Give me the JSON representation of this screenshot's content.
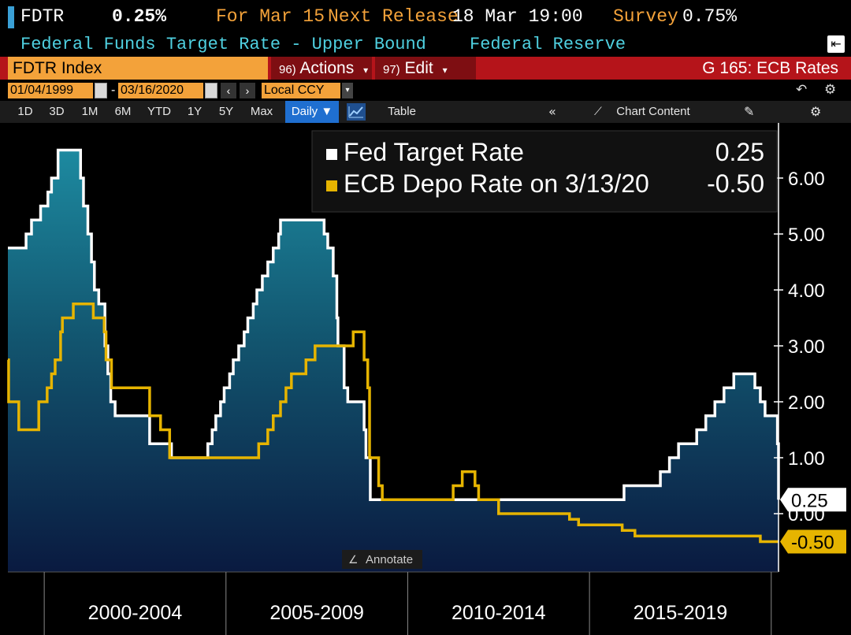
{
  "header": {
    "ticker_short": "FDTR",
    "last_value": "0.25%",
    "for_label": "For Mar 15",
    "next_release_label": "Next Release",
    "next_release_value": "18 Mar 19:00",
    "survey_label": "Survey",
    "survey_value": "0.75%",
    "description": "Federal Funds Target Rate - Upper Bound",
    "source": "Federal Reserve",
    "export_icon": "export-icon"
  },
  "toolbar": {
    "ticker": "FDTR Index",
    "actions_num": "96)",
    "actions_label": "Actions",
    "edit_num": "97)",
    "edit_label": "Edit",
    "page_title": "G 165: ECB Rates"
  },
  "date_range": {
    "start": "01/04/1999",
    "end": "03/16/2020",
    "separator": "-",
    "currency": "Local CCY"
  },
  "periods": [
    "1D",
    "3D",
    "1M",
    "6M",
    "YTD",
    "1Y",
    "5Y",
    "Max"
  ],
  "frequency": "Daily ▼",
  "table_label": "Table",
  "collapse_icon": "«",
  "chart_content_label": "Chart Content",
  "annotate_label": "Annotate",
  "colors": {
    "background": "#000000",
    "orange": "#f3a23a",
    "cyan_text": "#4fd0e0",
    "toolbar_red": "#b5141a",
    "fed_line": "#ffffff",
    "ecb_line": "#e6b400",
    "area_top": "#1d8aa0",
    "area_bottom": "#0a1a40"
  },
  "chart_data": {
    "type": "line",
    "ylim": [
      -0.9,
      7.0
    ],
    "y_ticks": [
      "6.00",
      "5.00",
      "4.00",
      "3.00",
      "2.00",
      "1.00",
      "0.00"
    ],
    "x_range": [
      1999.0,
      2020.2
    ],
    "x_categories": [
      "2000-2004",
      "2005-2009",
      "2010-2014",
      "2015-2019"
    ],
    "grid": false,
    "legend": [
      {
        "label": "Fed Target Rate",
        "value": "0.25",
        "color": "#ffffff"
      },
      {
        "label": "ECB Depo Rate on 3/13/20",
        "value": "-0.50",
        "color": "#e6b400"
      }
    ],
    "last_labels": [
      {
        "value": "0.25",
        "y": 0.25,
        "style": "white"
      },
      {
        "value": "-0.50",
        "y": -0.5,
        "style": "yellow"
      }
    ],
    "series": [
      {
        "name": "Fed Target Rate",
        "fill": true,
        "points": [
          [
            1999.0,
            4.75
          ],
          [
            1999.5,
            5.0
          ],
          [
            1999.65,
            5.25
          ],
          [
            1999.9,
            5.5
          ],
          [
            2000.1,
            5.75
          ],
          [
            2000.2,
            6.0
          ],
          [
            2000.38,
            6.5
          ],
          [
            2001.0,
            6.0
          ],
          [
            2001.08,
            5.5
          ],
          [
            2001.2,
            5.0
          ],
          [
            2001.3,
            4.5
          ],
          [
            2001.38,
            4.0
          ],
          [
            2001.5,
            3.75
          ],
          [
            2001.67,
            3.0
          ],
          [
            2001.75,
            2.5
          ],
          [
            2001.83,
            2.0
          ],
          [
            2001.95,
            1.75
          ],
          [
            2002.9,
            1.25
          ],
          [
            2003.5,
            1.0
          ],
          [
            2004.5,
            1.25
          ],
          [
            2004.62,
            1.5
          ],
          [
            2004.72,
            1.75
          ],
          [
            2004.85,
            2.0
          ],
          [
            2004.95,
            2.25
          ],
          [
            2005.1,
            2.5
          ],
          [
            2005.2,
            2.75
          ],
          [
            2005.35,
            3.0
          ],
          [
            2005.5,
            3.25
          ],
          [
            2005.6,
            3.5
          ],
          [
            2005.75,
            3.75
          ],
          [
            2005.85,
            4.0
          ],
          [
            2006.0,
            4.25
          ],
          [
            2006.15,
            4.5
          ],
          [
            2006.3,
            4.75
          ],
          [
            2006.45,
            5.0
          ],
          [
            2006.5,
            5.25
          ],
          [
            2007.7,
            5.0
          ],
          [
            2007.8,
            4.75
          ],
          [
            2007.95,
            4.25
          ],
          [
            2008.05,
            3.5
          ],
          [
            2008.08,
            3.0
          ],
          [
            2008.25,
            2.25
          ],
          [
            2008.35,
            2.0
          ],
          [
            2008.8,
            1.5
          ],
          [
            2008.85,
            1.0
          ],
          [
            2008.97,
            0.25
          ],
          [
            2015.95,
            0.5
          ],
          [
            2016.95,
            0.75
          ],
          [
            2017.2,
            1.0
          ],
          [
            2017.45,
            1.25
          ],
          [
            2017.95,
            1.5
          ],
          [
            2018.2,
            1.75
          ],
          [
            2018.45,
            2.0
          ],
          [
            2018.7,
            2.25
          ],
          [
            2018.97,
            2.5
          ],
          [
            2019.55,
            2.25
          ],
          [
            2019.7,
            2.0
          ],
          [
            2019.83,
            1.75
          ],
          [
            2020.17,
            1.25
          ],
          [
            2020.2,
            0.25
          ]
        ]
      },
      {
        "name": "ECB Depo Rate on 3/13/20",
        "fill": false,
        "points": [
          [
            1999.0,
            2.75
          ],
          [
            1999.02,
            2.0
          ],
          [
            1999.3,
            1.5
          ],
          [
            1999.85,
            2.0
          ],
          [
            2000.08,
            2.25
          ],
          [
            2000.2,
            2.5
          ],
          [
            2000.3,
            2.75
          ],
          [
            2000.45,
            3.25
          ],
          [
            2000.5,
            3.5
          ],
          [
            2000.8,
            3.75
          ],
          [
            2001.35,
            3.5
          ],
          [
            2001.65,
            3.25
          ],
          [
            2001.7,
            2.75
          ],
          [
            2001.85,
            2.25
          ],
          [
            2002.9,
            1.75
          ],
          [
            2003.2,
            1.5
          ],
          [
            2003.45,
            1.0
          ],
          [
            2005.9,
            1.25
          ],
          [
            2006.15,
            1.5
          ],
          [
            2006.3,
            1.75
          ],
          [
            2006.5,
            2.0
          ],
          [
            2006.65,
            2.25
          ],
          [
            2006.8,
            2.5
          ],
          [
            2007.2,
            2.75
          ],
          [
            2007.45,
            3.0
          ],
          [
            2008.5,
            3.25
          ],
          [
            2008.8,
            2.75
          ],
          [
            2008.9,
            2.25
          ],
          [
            2008.95,
            1.0
          ],
          [
            2009.2,
            0.5
          ],
          [
            2009.3,
            0.25
          ],
          [
            2011.25,
            0.5
          ],
          [
            2011.5,
            0.75
          ],
          [
            2011.85,
            0.5
          ],
          [
            2011.95,
            0.25
          ],
          [
            2012.5,
            0.0
          ],
          [
            2014.45,
            -0.1
          ],
          [
            2014.7,
            -0.2
          ],
          [
            2015.9,
            -0.3
          ],
          [
            2016.25,
            -0.4
          ],
          [
            2019.7,
            -0.5
          ],
          [
            2020.2,
            -0.5
          ]
        ]
      }
    ]
  }
}
